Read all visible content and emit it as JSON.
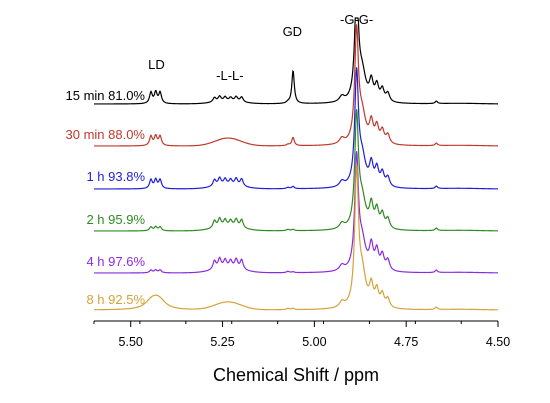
{
  "chart_data": {
    "type": "line",
    "chart_kind": "stacked 1H NMR spectra",
    "xlabel": "Chemical Shift / ppm",
    "ylabel": "",
    "xlim": [
      5.6,
      4.5
    ],
    "x_reversed": true,
    "x_ticks": [
      "5.50",
      "5.25",
      "5.00",
      "4.75",
      "4.50"
    ],
    "x_tick_values": [
      5.5,
      5.25,
      5.0,
      4.75,
      4.5
    ],
    "grid": false,
    "peak_labels": [
      {
        "text": "LD",
        "x": 5.43
      },
      {
        "text": "-L-L-",
        "x": 5.23
      },
      {
        "text": "GD",
        "x": 5.06
      },
      {
        "text": "-G-G-",
        "x": 4.885
      }
    ],
    "series": [
      {
        "name": "15 min 81.0%",
        "color": "#000000",
        "peaks": {
          "LD": 1.0,
          "LL": 0.55,
          "GD": 3.0,
          "GG": 10,
          "shoulder": 1.7
        }
      },
      {
        "name": "30 min 88.0%",
        "color": "#c0392b",
        "peaks": {
          "LD": 0.85,
          "LL": 0.55,
          "GD": 0.75,
          "GG": 10,
          "shoulder": 1.8
        }
      },
      {
        "name": "1 h 93.8%",
        "color": "#1f1fd6",
        "peaks": {
          "LD": 0.8,
          "LL": 0.8,
          "GD": 0.2,
          "GG": 10,
          "shoulder": 1.9
        }
      },
      {
        "name": "2 h 95.9%",
        "color": "#2e8b22",
        "peaks": {
          "LD": 0.35,
          "LL": 0.9,
          "GD": 0.12,
          "GG": 10,
          "shoulder": 2.0
        }
      },
      {
        "name": "4 h 97.6%",
        "color": "#8a2be2",
        "peaks": {
          "LD": 0.25,
          "LL": 1.05,
          "GD": 0.08,
          "GG": 10,
          "shoulder": 2.1
        }
      },
      {
        "name": "8 h 92.5%",
        "color": "#d4a23a",
        "peaks": {
          "LD": 0.55,
          "LL": 0.55,
          "GD": 0.12,
          "GG": 12,
          "shoulder": 1.8
        }
      }
    ]
  }
}
